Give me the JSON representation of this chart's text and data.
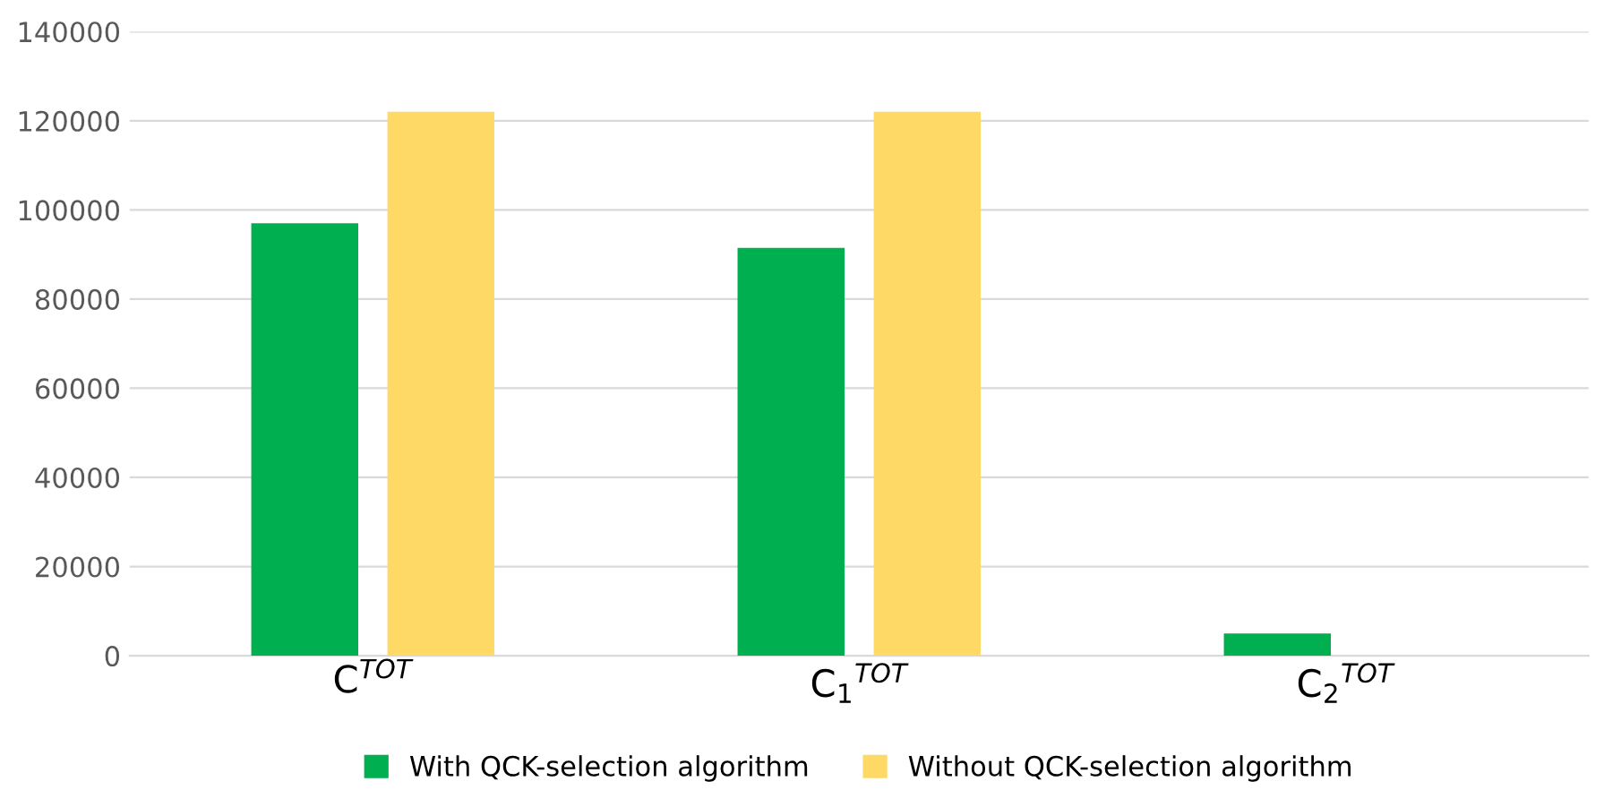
{
  "chart_data": {
    "type": "bar",
    "categories": [
      "C$^{TOT}$",
      "C$_{1}$$^{TOT}$",
      "C$_{2}$$^{TOT}$"
    ],
    "series": [
      {
        "name": "With QCK-selection algorithm",
        "color": "#00b050",
        "values": [
          97000,
          91500,
          5000
        ]
      },
      {
        "name": "Without QCK-selection algorithm",
        "color": "#ffd966",
        "values": [
          122000,
          122000,
          0
        ]
      }
    ],
    "ylim": [
      0,
      140000
    ],
    "yticks": [
      0,
      20000,
      40000,
      60000,
      80000,
      100000,
      120000,
      140000
    ],
    "grid": "y",
    "legend": "bottom"
  }
}
